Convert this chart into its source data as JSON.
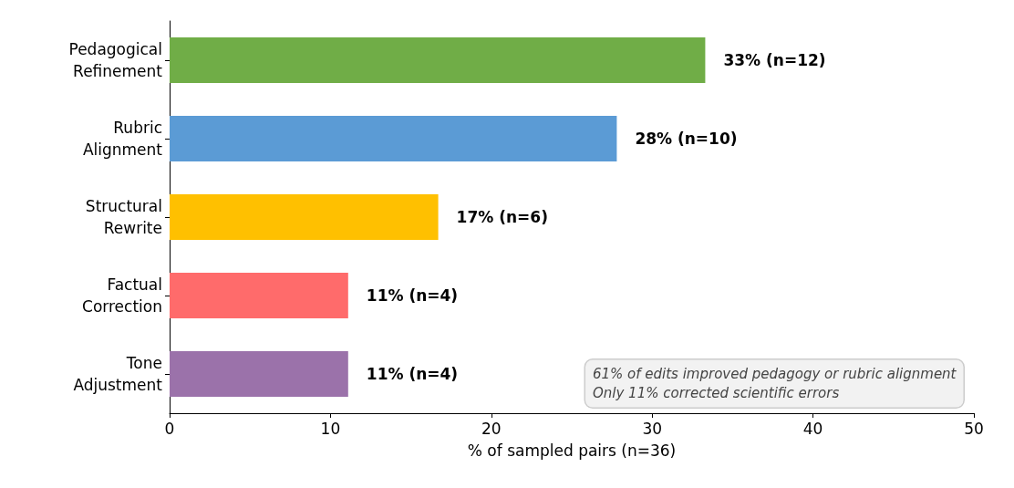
{
  "chart_data": {
    "type": "bar",
    "orientation": "horizontal",
    "categories": [
      "Pedagogical\nRefinement",
      "Rubric\nAlignment",
      "Structural\nRewrite",
      "Factual\nCorrection",
      "Tone\nAdjustment"
    ],
    "values": [
      33.3,
      27.8,
      16.7,
      11.1,
      11.1
    ],
    "colors": [
      "#70ad47",
      "#5b9bd5",
      "#ffc000",
      "#ff6b6b",
      "#9b72aa"
    ],
    "value_labels": [
      "33% (n=12)",
      "28% (n=10)",
      "17% (n=6)",
      "11% (n=4)",
      "11% (n=4)"
    ],
    "xlabel": "% of sampled pairs (n=36)",
    "xlim": [
      0,
      50
    ],
    "xticks": [
      0,
      10,
      20,
      30,
      40,
      50
    ],
    "grid": false,
    "annotations": [
      "61% of edits improved pedagogy or rubric alignment\nOnly 11% corrected scientific errors"
    ]
  }
}
